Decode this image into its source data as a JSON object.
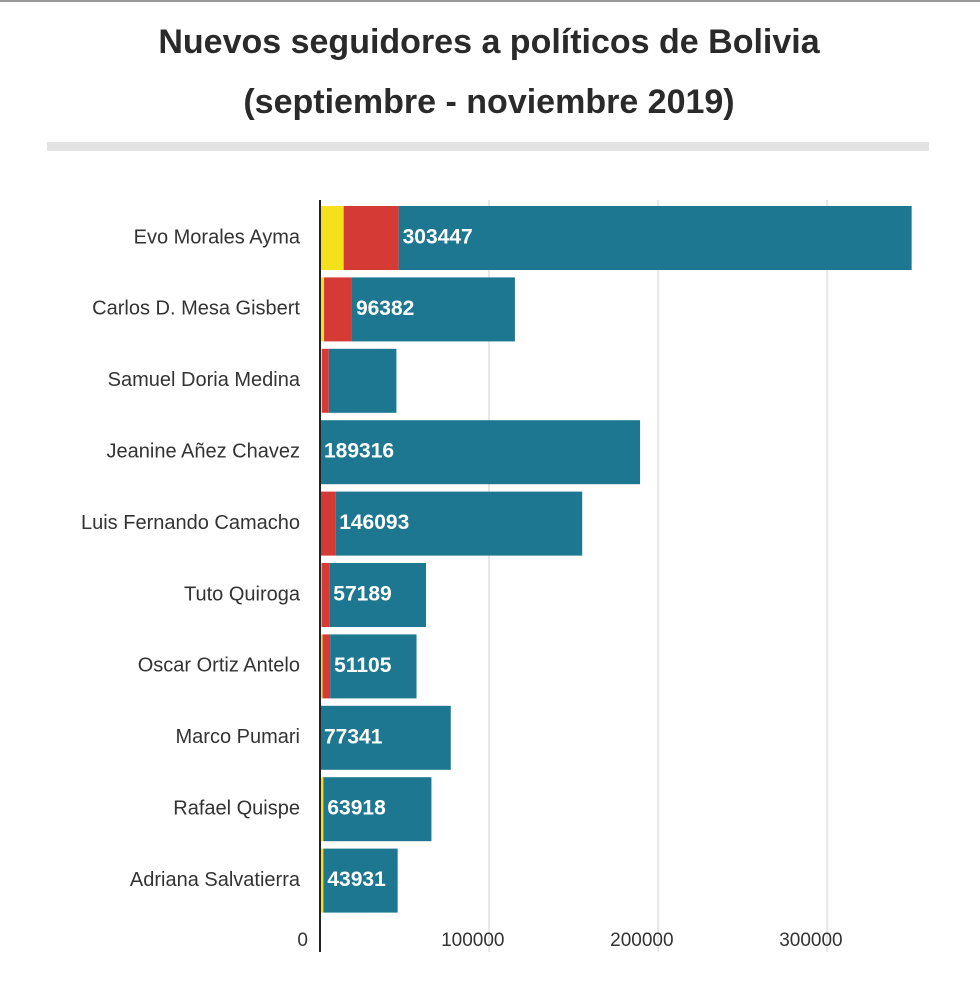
{
  "chart_data": {
    "type": "stacked-bar-horizontal",
    "title": "Nuevos seguidores a políticos de Bolivia",
    "subtitle": "(septiembre - noviembre 2019)",
    "categories": [
      "Evo Morales Ayma",
      "Carlos D. Mesa Gisbert",
      "Samuel Doria Medina",
      "Jeanine Añez Chavez",
      "Luis Fernando Camacho",
      "Tuto Quiroga",
      "Oscar Ortiz Antelo",
      "Marco Pumari",
      "Rafael Quispe",
      "Adriana Salvatierra"
    ],
    "series": [
      {
        "color": "#f5e11b",
        "values": [
          14000,
          2400,
          1200,
          0,
          0,
          1000,
          1500,
          0,
          2000,
          2000
        ]
      },
      {
        "color": "#d63a35",
        "values": [
          32500,
          16500,
          4000,
          0,
          9000,
          4500,
          4500,
          0,
          0,
          0
        ]
      },
      {
        "color": "#1e7790",
        "values": [
          303447,
          96382,
          40000,
          189316,
          146093,
          57189,
          51105,
          77341,
          63918,
          43931
        ],
        "value_labels": [
          "303447",
          "96382",
          null,
          "189316",
          "146093",
          "57189",
          "51105",
          "77341",
          "63918",
          "43931"
        ]
      }
    ],
    "xlim": [
      0,
      375000
    ],
    "xticks": [
      0,
      100000,
      200000,
      300000
    ],
    "grid": true
  }
}
